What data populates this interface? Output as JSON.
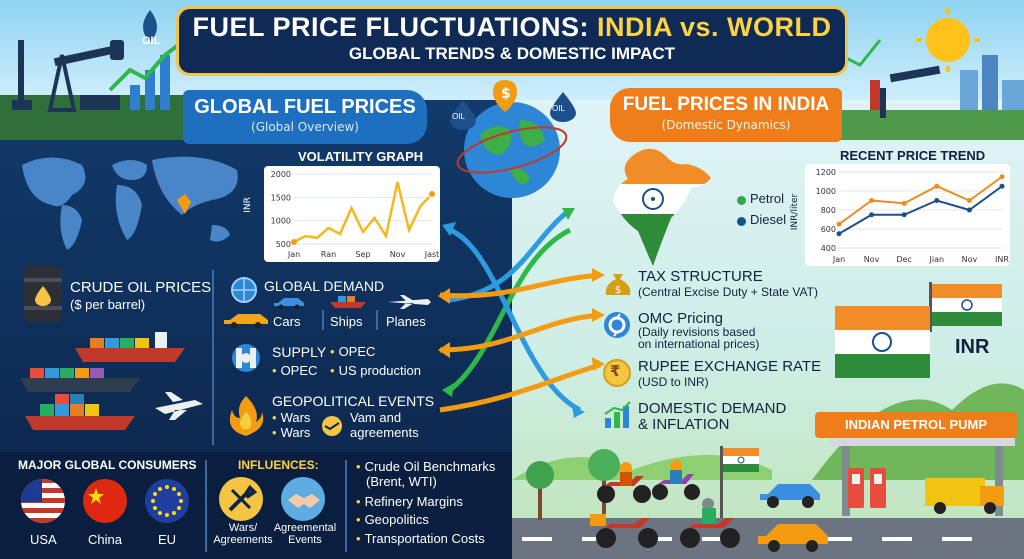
{
  "header": {
    "title_part1": "FUEL PRICE FLUCTUATIONS: ",
    "title_part2": "INDIA vs. WORLD",
    "subtitle": "GLOBAL TRENDS & DOMESTIC IMPACT",
    "oil_badge": "OIL"
  },
  "globe": {
    "badge_dollar": "$",
    "badge_oil_left": "OIL",
    "badge_oil_right": "OIL"
  },
  "global_section": {
    "title": "GLOBAL FUEL PRICES",
    "subtitle": "(Global Overview)",
    "volatility_chart": {
      "title": "VOLATILITY GRAPH",
      "ylabel": "INR",
      "yticks": [
        "2000",
        "1500",
        "1000",
        "500"
      ],
      "xticks": [
        "Jan",
        "Ran",
        "Sep",
        "Nov",
        "Jast"
      ]
    },
    "crude_oil": {
      "title": "CRUDE OIL PRICES",
      "sub": "($ per barrel)"
    },
    "demand": {
      "title": "GLOBAL DEMAND",
      "items": [
        "Cars",
        "Ships",
        "Planes"
      ]
    },
    "supply": {
      "title": "SUPPLY",
      "items": [
        "OPEC",
        "OPEC",
        "US production"
      ]
    },
    "geopolitical": {
      "title": "GEOPOLITICAL EVENTS",
      "items": [
        "Wars",
        "Wars",
        "Vam and",
        "agreements"
      ]
    },
    "consumers": {
      "title": "MAJOR GLOBAL CONSUMERS",
      "items": [
        "USA",
        "China",
        "EU"
      ]
    },
    "influences": {
      "title": "INFLUENCES:",
      "items": [
        "Wars/\nAgreements",
        "Agreemental\nEvents"
      ]
    },
    "factors": [
      "Crude Oil Benchmarks",
      "(Brent, WTI)",
      "Refinery Margins",
      "Geopolitics",
      "Transportation Costs"
    ]
  },
  "india_section": {
    "title": "FUEL PRICES IN INDIA",
    "subtitle": "(Domestic Dynamics)",
    "legend": [
      "Petrol",
      "Diesel"
    ],
    "trend_chart": {
      "title": "RECENT PRICE TREND",
      "ylabel": "INR/liter",
      "yticks": [
        "1200",
        "1000",
        "800",
        "600",
        "400"
      ],
      "xticks": [
        "Jan",
        "Nov",
        "Dec",
        "Jian",
        "Nov",
        "INR"
      ]
    },
    "factors": [
      {
        "title": "TAX STRUCTURE",
        "sub": "(Central Excise Duty + State VAT)"
      },
      {
        "title": "OMC Pricing",
        "sub": "(Daily revisions based\non international prices)"
      },
      {
        "title": "RUPEE EXCHANGE RATE",
        "sub": "(USD to INR)"
      },
      {
        "title": "DOMESTIC DEMAND",
        "sub": "& INFLATION"
      }
    ],
    "inr_label": "INR",
    "pump_label": "INDIAN PETROL PUMP",
    "rupee_symbol": "₹"
  },
  "chart_data": [
    {
      "type": "line",
      "title": "VOLATILITY GRAPH",
      "ylabel": "INR",
      "ylim": [
        250,
        2000
      ],
      "x": [
        0,
        1,
        2,
        3,
        4,
        5,
        6,
        7,
        8,
        9,
        10,
        11,
        12
      ],
      "series": [
        {
          "values": [
            300,
            450,
            400,
            650,
            500,
            1150,
            550,
            900,
            450,
            1800,
            600,
            1200,
            1500
          ]
        }
      ],
      "colors": [
        "#f2b81e"
      ]
    },
    {
      "type": "line",
      "title": "RECENT PRICE TREND",
      "ylabel": "INR/liter",
      "categories": [
        "Jan",
        "Nov",
        "Dec",
        "Jian",
        "Nov",
        "INR"
      ],
      "ylim": [
        400,
        1200
      ],
      "series": [
        {
          "name": "Petrol",
          "values": [
            650,
            900,
            870,
            1050,
            900,
            1150
          ]
        },
        {
          "name": "Diesel",
          "values": [
            550,
            750,
            750,
            900,
            800,
            1050
          ]
        }
      ],
      "colors": [
        "#f08a1c",
        "#1b4f8c"
      ]
    }
  ]
}
